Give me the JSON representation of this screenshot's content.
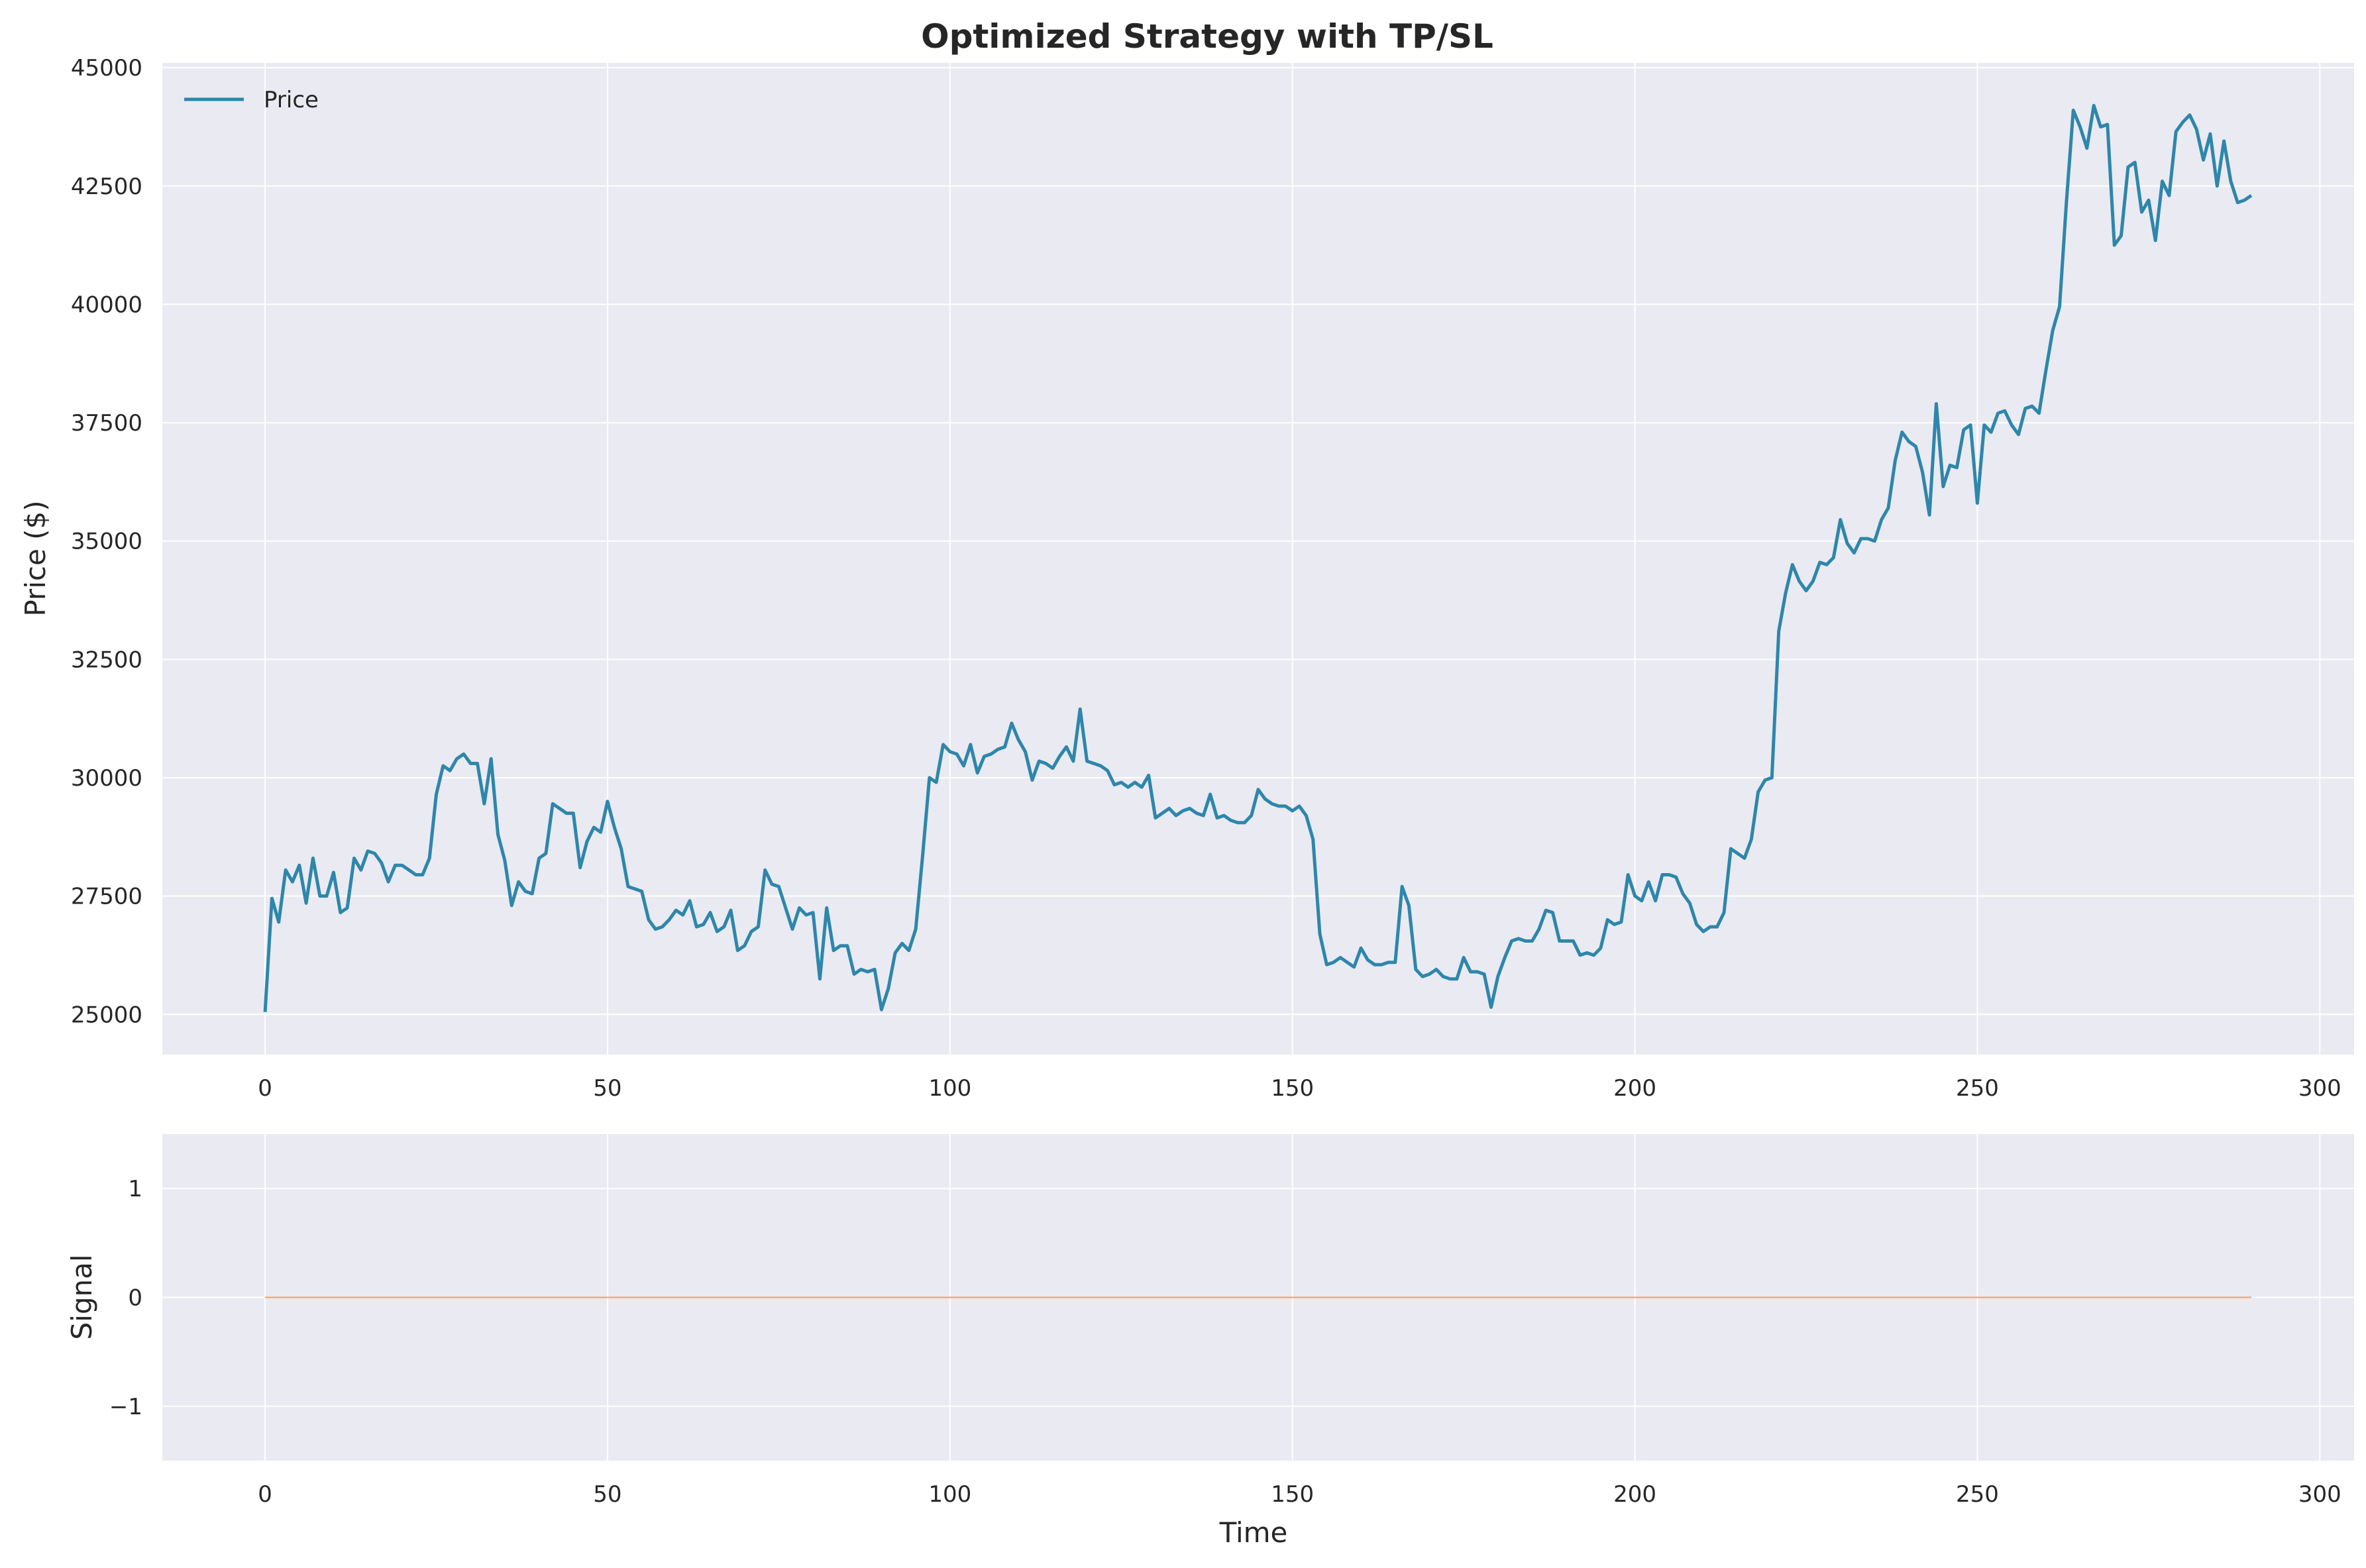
{
  "colors": {
    "panel_bg": "#eaeaf2",
    "grid": "#ffffff",
    "price": "#2e86ab",
    "signal": "#f5a05a"
  },
  "chart_data": [
    {
      "type": "line",
      "title": "Optimized Strategy with TP/SL",
      "xlabel": "",
      "ylabel": "Price ($)",
      "xlim": [
        -15,
        305
      ],
      "ylim": [
        24150,
        45100
      ],
      "xticks": [
        0,
        50,
        100,
        150,
        200,
        250,
        300
      ],
      "yticks": [
        25000,
        27500,
        30000,
        32500,
        35000,
        37500,
        40000,
        42500,
        45000
      ],
      "grid": true,
      "legend": "top-left",
      "series": [
        {
          "name": "Price",
          "x_start": 0,
          "x_step": 1,
          "values": [
            25050,
            27450,
            26950,
            28050,
            27800,
            28150,
            27350,
            28300,
            27500,
            27500,
            28000,
            27150,
            27250,
            28300,
            28050,
            28450,
            28400,
            28200,
            27800,
            28150,
            28150,
            28050,
            27950,
            27950,
            28300,
            29650,
            30250,
            30150,
            30400,
            30500,
            30300,
            30300,
            29450,
            30400,
            28800,
            28250,
            27300,
            27800,
            27600,
            27550,
            28300,
            28400,
            29450,
            29350,
            29250,
            29250,
            28100,
            28650,
            28950,
            28850,
            29500,
            28950,
            28500,
            27700,
            27650,
            27600,
            27000,
            26800,
            26850,
            27000,
            27200,
            27100,
            27400,
            26850,
            26900,
            27150,
            26750,
            26850,
            27200,
            26350,
            26450,
            26750,
            26850,
            28050,
            27750,
            27700,
            27250,
            26800,
            27250,
            27100,
            27150,
            25750,
            27250,
            26350,
            26450,
            26450,
            25850,
            25950,
            25900,
            25950,
            25100,
            25550,
            26300,
            26500,
            26350,
            26800,
            28350,
            30000,
            29900,
            30700,
            30550,
            30500,
            30250,
            30700,
            30100,
            30450,
            30500,
            30600,
            30650,
            31150,
            30800,
            30550,
            29950,
            30350,
            30300,
            30200,
            30450,
            30650,
            30350,
            31450,
            30350,
            30300,
            30250,
            30150,
            29850,
            29900,
            29800,
            29900,
            29800,
            30050,
            29150,
            29250,
            29350,
            29200,
            29300,
            29350,
            29250,
            29200,
            29650,
            29150,
            29200,
            29100,
            29050,
            29050,
            29200,
            29750,
            29550,
            29450,
            29400,
            29400,
            29300,
            29400,
            29200,
            28700,
            26700,
            26050,
            26100,
            26200,
            26100,
            26000,
            26400,
            26150,
            26050,
            26050,
            26100,
            26100,
            27700,
            27300,
            25950,
            25800,
            25850,
            25950,
            25800,
            25750,
            25750,
            26200,
            25900,
            25900,
            25850,
            25150,
            25800,
            26200,
            26550,
            26600,
            26550,
            26550,
            26800,
            27200,
            27150,
            26550,
            26550,
            26550,
            26250,
            26300,
            26250,
            26400,
            27000,
            26900,
            26950,
            27950,
            27500,
            27400,
            27800,
            27400,
            27950,
            27950,
            27900,
            27550,
            27350,
            26900,
            26750,
            26850,
            26850,
            27150,
            28500,
            28400,
            28300,
            28700,
            29700,
            29950,
            30000,
            33100,
            33900,
            34500,
            34150,
            33950,
            34150,
            34550,
            34500,
            34650,
            35450,
            34950,
            34750,
            35050,
            35050,
            35000,
            35450,
            35700,
            36700,
            37300,
            37100,
            37000,
            36450,
            35550,
            37900,
            36150,
            36600,
            36550,
            37350,
            37450,
            35800,
            37450,
            37300,
            37700,
            37750,
            37450,
            37250,
            37800,
            37850,
            37700,
            38600,
            39450,
            39950,
            42150,
            44100,
            43750,
            43300,
            44200,
            43750,
            43800,
            41250,
            41450,
            42900,
            43000,
            41950,
            42200,
            41350,
            42600,
            42300,
            43650,
            43850,
            44000,
            43700,
            43050,
            43600,
            42500,
            43450,
            42600,
            42150,
            42200,
            42300
          ]
        }
      ]
    },
    {
      "type": "line",
      "title": "",
      "xlabel": "Time",
      "ylabel": "Signal",
      "xlim": [
        -15,
        305
      ],
      "ylim": [
        -1.5,
        1.5
      ],
      "xticks": [
        0,
        50,
        100,
        150,
        200,
        250,
        300
      ],
      "yticks": [
        -1,
        0,
        1
      ],
      "ytick_labels": [
        "−1",
        "0",
        "1"
      ],
      "grid": true,
      "series": [
        {
          "x": [
            0,
            290
          ],
          "values": [
            0,
            0
          ]
        }
      ]
    }
  ]
}
